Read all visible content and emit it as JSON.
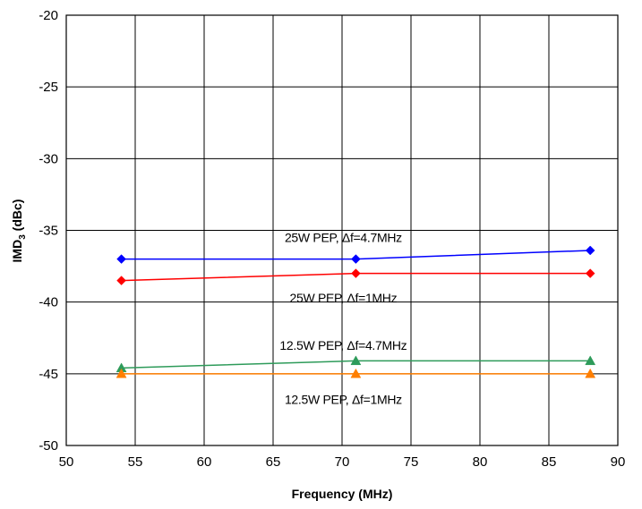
{
  "chart_data": {
    "type": "line",
    "title": "",
    "xlabel": "Frequency (MHz)",
    "ylabel": "IMD3 (dBc)",
    "ylabel_main": "IMD",
    "ylabel_sub": "3",
    "ylabel_rest": " (dBc)",
    "xlim": [
      50,
      90
    ],
    "ylim": [
      -50,
      -20
    ],
    "xticks": [
      50,
      55,
      60,
      65,
      70,
      75,
      80,
      85,
      90
    ],
    "yticks": [
      -20,
      -25,
      -30,
      -35,
      -40,
      -45,
      -50
    ],
    "grid": true,
    "legend": "none",
    "series": [
      {
        "name": "25W PEP, Δf=4.7MHz",
        "color": "#0000ff",
        "marker": "diamond",
        "x": [
          54,
          71,
          88
        ],
        "y": [
          -37.0,
          -37.0,
          -36.4
        ]
      },
      {
        "name": "25W PEP, Δf=1MHz",
        "color": "#ff0000",
        "marker": "diamond",
        "x": [
          54,
          71,
          88
        ],
        "y": [
          -38.5,
          -38.0,
          -38.0
        ]
      },
      {
        "name": "12.5W PEP, Δf=4.7MHz",
        "color": "#2e9b5a",
        "marker": "triangle",
        "x": [
          54,
          71,
          88
        ],
        "y": [
          -44.6,
          -44.1,
          -44.1
        ]
      },
      {
        "name": "12.5W PEP, Δf=1MHz",
        "color": "#ff7f00",
        "marker": "triangle",
        "x": [
          54,
          71,
          88
        ],
        "y": [
          -45.0,
          -45.0,
          -45.0
        ]
      }
    ],
    "annotations": [
      {
        "text": "25W PEP, Δf=4.7MHz",
        "x": 71,
        "y": -35.5
      },
      {
        "text": "25W PEP, Δf=1MHz",
        "x": 71,
        "y": -39.7
      },
      {
        "text": "12.5W PEP, Δf=4.7MHz",
        "x": 71,
        "y": -43.0
      },
      {
        "text": "12.5W PEP, Δf=1MHz",
        "x": 71,
        "y": -46.8
      }
    ]
  }
}
